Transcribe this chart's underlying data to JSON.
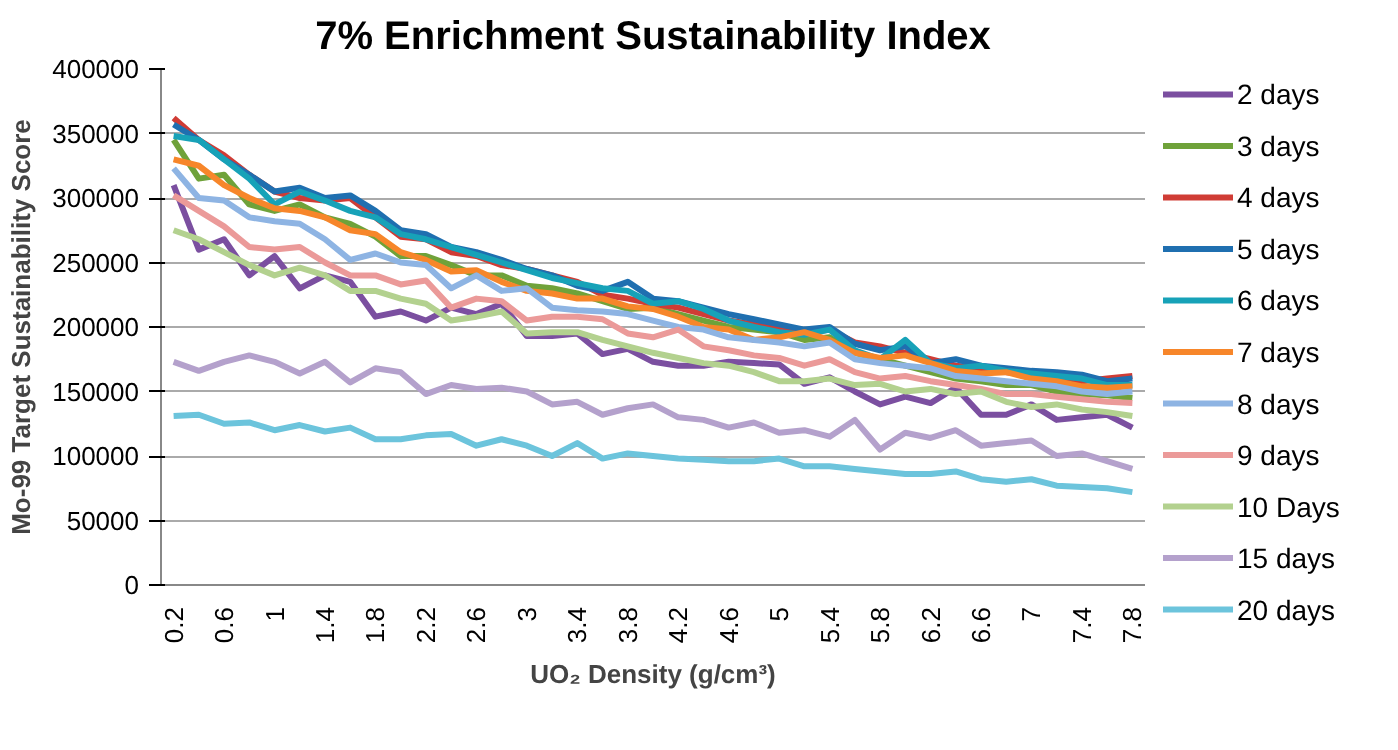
{
  "chart_data": {
    "type": "line",
    "title": "7% Enrichment Sustainability Index",
    "xlabel": "UO₂ Density (g/cm³)",
    "ylabel": "Mo-99 Target Sustainability Score",
    "categories": [
      "0.2",
      null,
      "0.6",
      null,
      "1",
      null,
      "1.4",
      null,
      "1.8",
      null,
      "2.2",
      null,
      "2.6",
      null,
      "3",
      null,
      "3.4",
      null,
      "3.8",
      null,
      "4.2",
      null,
      "4.6",
      null,
      "5",
      null,
      "5.4",
      null,
      "5.8",
      null,
      "6.2",
      null,
      "6.6",
      null,
      "7",
      null,
      "7.4",
      null,
      "7.8"
    ],
    "ylim": [
      0,
      400000
    ],
    "yticks": [
      0,
      50000,
      100000,
      150000,
      200000,
      250000,
      300000,
      350000,
      400000
    ],
    "grid": "y",
    "legend": "right",
    "line_style": "solid",
    "marker": "none",
    "series": [
      {
        "name": "2 days",
        "color": "#7b4fa0",
        "values": [
          310000,
          260000,
          268000,
          240000,
          255000,
          230000,
          240000,
          235000,
          208000,
          212000,
          205000,
          215000,
          210000,
          218000,
          193000,
          193000,
          195000,
          179000,
          183000,
          173000,
          170000,
          170000,
          173000,
          172000,
          171000,
          156000,
          161000,
          150000,
          140000,
          146000,
          141000,
          153000,
          132000,
          132000,
          140000,
          128000,
          130000,
          132000,
          122000
        ]
      },
      {
        "name": "3 days",
        "color": "#6fa23a",
        "values": [
          345000,
          315000,
          318000,
          295000,
          290000,
          295000,
          285000,
          280000,
          270000,
          255000,
          255000,
          248000,
          240000,
          240000,
          232000,
          230000,
          226000,
          220000,
          214000,
          215000,
          210000,
          205000,
          200000,
          198000,
          196000,
          190000,
          192000,
          180000,
          175000,
          170000,
          165000,
          160000,
          158000,
          155000,
          155000,
          150000,
          148000,
          147000,
          145000
        ]
      },
      {
        "name": "4 days",
        "color": "#d03c35",
        "values": [
          362000,
          345000,
          333000,
          318000,
          305000,
          300000,
          298000,
          300000,
          285000,
          270000,
          268000,
          258000,
          255000,
          248000,
          245000,
          240000,
          235000,
          225000,
          222000,
          218000,
          215000,
          210000,
          205000,
          202000,
          198000,
          195000,
          198000,
          188000,
          185000,
          180000,
          175000,
          170000,
          168000,
          165000,
          163000,
          160000,
          158000,
          160000,
          162000
        ]
      },
      {
        "name": "5 days",
        "color": "#1f6fb0",
        "values": [
          357000,
          345000,
          330000,
          318000,
          305000,
          308000,
          300000,
          302000,
          290000,
          275000,
          272000,
          262000,
          258000,
          252000,
          245000,
          240000,
          232000,
          228000,
          235000,
          222000,
          220000,
          215000,
          210000,
          206000,
          202000,
          198000,
          200000,
          187000,
          182000,
          185000,
          172000,
          175000,
          170000,
          168000,
          166000,
          165000,
          163000,
          158000,
          160000
        ]
      },
      {
        "name": "6 days",
        "color": "#17a2b8",
        "values": [
          348000,
          345000,
          330000,
          315000,
          295000,
          305000,
          298000,
          290000,
          285000,
          272000,
          268000,
          262000,
          256000,
          250000,
          244000,
          238000,
          234000,
          230000,
          228000,
          218000,
          220000,
          214000,
          205000,
          200000,
          196000,
          194000,
          198000,
          182000,
          175000,
          190000,
          172000,
          168000,
          170000,
          166000,
          164000,
          162000,
          160000,
          155000,
          155000
        ]
      },
      {
        "name": "7 days",
        "color": "#f7862a",
        "values": [
          330000,
          325000,
          310000,
          300000,
          292000,
          290000,
          285000,
          275000,
          272000,
          258000,
          252000,
          243000,
          244000,
          235000,
          228000,
          226000,
          222000,
          222000,
          216000,
          214000,
          208000,
          200000,
          198000,
          190000,
          192000,
          196000,
          190000,
          180000,
          176000,
          178000,
          172000,
          166000,
          164000,
          165000,
          160000,
          158000,
          154000,
          153000,
          154000
        ]
      },
      {
        "name": "8 days",
        "color": "#8eb4e3",
        "values": [
          323000,
          300000,
          298000,
          285000,
          282000,
          280000,
          268000,
          252000,
          257000,
          250000,
          248000,
          230000,
          240000,
          228000,
          230000,
          215000,
          213000,
          212000,
          210000,
          205000,
          200000,
          198000,
          192000,
          190000,
          188000,
          185000,
          188000,
          175000,
          172000,
          170000,
          168000,
          162000,
          160000,
          158000,
          156000,
          154000,
          150000,
          148000,
          150000
        ]
      },
      {
        "name": "9 days",
        "color": "#eb9a99",
        "values": [
          302000,
          290000,
          278000,
          262000,
          260000,
          262000,
          250000,
          240000,
          240000,
          233000,
          236000,
          215000,
          222000,
          220000,
          205000,
          208000,
          208000,
          206000,
          195000,
          192000,
          198000,
          185000,
          182000,
          178000,
          176000,
          170000,
          175000,
          165000,
          160000,
          162000,
          158000,
          155000,
          152000,
          148000,
          148000,
          146000,
          144000,
          142000,
          141000
        ]
      },
      {
        "name": "10 Days",
        "color": "#b3d18f",
        "values": [
          275000,
          268000,
          258000,
          248000,
          240000,
          246000,
          240000,
          228000,
          228000,
          222000,
          218000,
          205000,
          208000,
          212000,
          195000,
          196000,
          196000,
          190000,
          185000,
          180000,
          176000,
          172000,
          170000,
          165000,
          158000,
          158000,
          160000,
          155000,
          156000,
          150000,
          152000,
          148000,
          150000,
          142000,
          138000,
          140000,
          136000,
          134000,
          131000
        ]
      },
      {
        "name": "15 days",
        "color": "#b4a1cc",
        "values": [
          173000,
          166000,
          173000,
          178000,
          173000,
          164000,
          173000,
          157000,
          168000,
          165000,
          148000,
          155000,
          152000,
          153000,
          150000,
          140000,
          142000,
          132000,
          137000,
          140000,
          130000,
          128000,
          122000,
          126000,
          118000,
          120000,
          115000,
          128000,
          105000,
          118000,
          114000,
          120000,
          108000,
          110000,
          112000,
          100000,
          102000,
          96000,
          90000
        ]
      },
      {
        "name": "20 days",
        "color": "#6cc4dc",
        "values": [
          131000,
          132000,
          125000,
          126000,
          120000,
          124000,
          119000,
          122000,
          113000,
          113000,
          116000,
          117000,
          108000,
          113000,
          108000,
          100000,
          110000,
          98000,
          102000,
          100000,
          98000,
          97000,
          96000,
          96000,
          98000,
          92000,
          92000,
          90000,
          88000,
          86000,
          86000,
          88000,
          82000,
          80000,
          82000,
          77000,
          76000,
          75000,
          72000
        ]
      }
    ]
  }
}
